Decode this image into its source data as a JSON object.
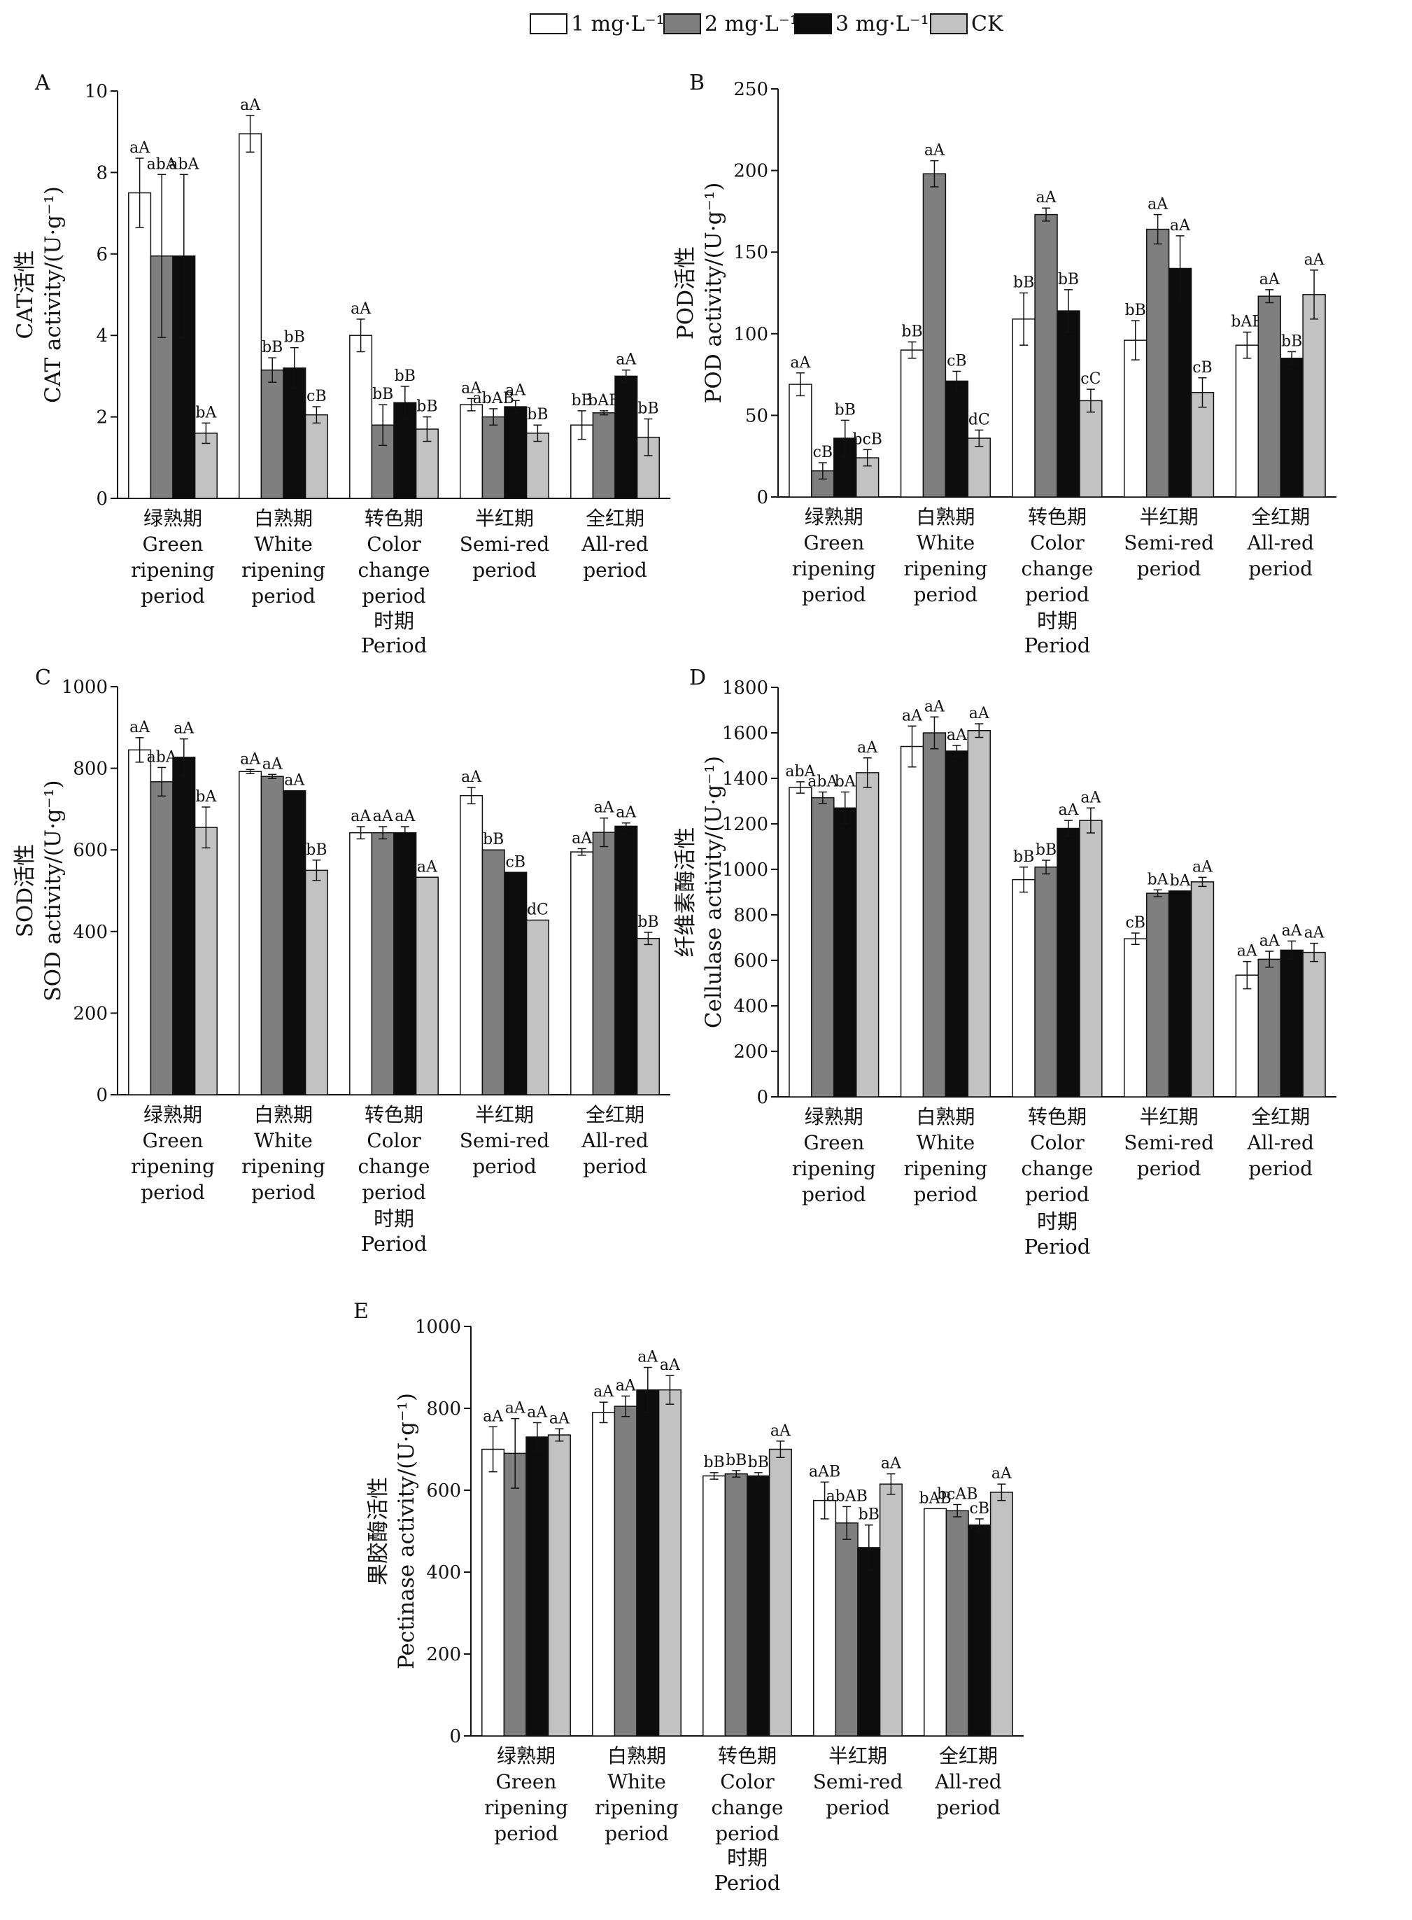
{
  "legend": {
    "items": [
      {
        "label": "1 mg·L⁻¹",
        "color": "#ffffff"
      },
      {
        "label": "2 mg·L⁻¹",
        "color": "#7f7f7f"
      },
      {
        "label": "3 mg·L⁻¹",
        "color": "#0d0d0d"
      },
      {
        "label": "CK",
        "color": "#c2c2c2"
      }
    ]
  },
  "category_labels": [
    [
      "绿熟期",
      "Green",
      "ripening",
      "period"
    ],
    [
      "白熟期",
      "White",
      "ripening",
      "period"
    ],
    [
      "转色期",
      "Color",
      "change",
      "period"
    ],
    [
      "半红期",
      "Semi-red",
      "period"
    ],
    [
      "全红期",
      "All-red",
      "period"
    ]
  ],
  "x_title": [
    "时期",
    "Period"
  ],
  "chart_data": [
    {
      "panel": "A",
      "type": "bar",
      "ylabel": [
        "CAT活性",
        "CAT activity/(U·g⁻¹)"
      ],
      "ylim": [
        0,
        10
      ],
      "yticks": [
        0,
        2,
        4,
        6,
        8,
        10
      ],
      "categories": [
        "绿熟期 Green ripening period",
        "白熟期 White ripening period",
        "转色期 Color change period",
        "半红期 Semi-red period",
        "全红期 All-red period"
      ],
      "series": [
        {
          "name": "1 mg·L⁻¹",
          "values": [
            7.5,
            8.95,
            4.0,
            2.3,
            1.8
          ],
          "errors": [
            0.85,
            0.45,
            0.4,
            0.15,
            0.35
          ],
          "labels": [
            "aA",
            "aA",
            "aA",
            "aA",
            "bB"
          ]
        },
        {
          "name": "2 mg·L⁻¹",
          "values": [
            5.95,
            3.15,
            1.8,
            2.0,
            2.1
          ],
          "errors": [
            2.0,
            0.3,
            0.5,
            0.2,
            0.05
          ],
          "labels": [
            "abA",
            "bB",
            "bB",
            "abAB",
            "bAB"
          ]
        },
        {
          "name": "3 mg·L⁻¹",
          "values": [
            5.95,
            3.2,
            2.35,
            2.25,
            3.0
          ],
          "errors": [
            2.0,
            0.5,
            0.4,
            0.15,
            0.15
          ],
          "labels": [
            "abA",
            "bB",
            "bB",
            "aA",
            "aA"
          ]
        },
        {
          "name": "CK",
          "values": [
            1.6,
            2.05,
            1.7,
            1.6,
            1.5
          ],
          "errors": [
            0.25,
            0.2,
            0.3,
            0.2,
            0.45
          ],
          "labels": [
            "bA",
            "cB",
            "bB",
            "bB",
            "bB"
          ]
        }
      ]
    },
    {
      "panel": "B",
      "type": "bar",
      "ylabel": [
        "POD活性",
        "POD activity/(U·g⁻¹)"
      ],
      "ylim": [
        0,
        250
      ],
      "yticks": [
        0,
        50,
        100,
        150,
        200,
        250
      ],
      "categories": [
        "绿熟期 Green ripening period",
        "白熟期 White ripening period",
        "转色期 Color change period",
        "半红期 Semi-red period",
        "全红期 All-red period"
      ],
      "series": [
        {
          "name": "1 mg·L⁻¹",
          "values": [
            69,
            90,
            109,
            96,
            93
          ],
          "errors": [
            7,
            5,
            16,
            12,
            8
          ],
          "labels": [
            "aA",
            "bB",
            "bB",
            "bB",
            "bAB"
          ]
        },
        {
          "name": "2 mg·L⁻¹",
          "values": [
            16,
            198,
            173,
            164,
            123
          ],
          "errors": [
            5,
            8,
            4,
            9,
            4
          ],
          "labels": [
            "cB",
            "aA",
            "aA",
            "aA",
            "aA"
          ]
        },
        {
          "name": "3 mg·L⁻¹",
          "values": [
            36,
            71,
            114,
            140,
            85
          ],
          "errors": [
            11,
            6,
            13,
            20,
            4
          ],
          "labels": [
            "bB",
            "cB",
            "bB",
            "aA",
            "bB"
          ]
        },
        {
          "name": "CK",
          "values": [
            24,
            36,
            59,
            64,
            124
          ],
          "errors": [
            5,
            5,
            7,
            9,
            15
          ],
          "labels": [
            "bcB",
            "dC",
            "cC",
            "cB",
            "aA"
          ]
        }
      ]
    },
    {
      "panel": "C",
      "type": "bar",
      "ylabel": [
        "SOD活性",
        "SOD activity/(U·g⁻¹)"
      ],
      "ylim": [
        0,
        1000
      ],
      "yticks": [
        0,
        200,
        400,
        600,
        800,
        1000
      ],
      "categories": [
        "绿熟期 Green ripening period",
        "白熟期 White ripening period",
        "转色期 Color change period",
        "半红期 Semi-red period",
        "全红期 All-red period"
      ],
      "series": [
        {
          "name": "1 mg·L⁻¹",
          "values": [
            845,
            792,
            642,
            733,
            595
          ],
          "errors": [
            30,
            5,
            15,
            20,
            8
          ],
          "labels": [
            "aA",
            "aA",
            "aA",
            "aA",
            "aA"
          ]
        },
        {
          "name": "2 mg·L⁻¹",
          "values": [
            767,
            780,
            642,
            600,
            643
          ],
          "errors": [
            35,
            5,
            15,
            0,
            35
          ],
          "labels": [
            "abA",
            "aA",
            "aA",
            "bB",
            "aA"
          ]
        },
        {
          "name": "3 mg·L⁻¹",
          "values": [
            827,
            745,
            642,
            545,
            658
          ],
          "errors": [
            45,
            0,
            15,
            0,
            8
          ],
          "labels": [
            "aA",
            "aA",
            "aA",
            "cB",
            "aA"
          ]
        },
        {
          "name": "CK",
          "values": [
            655,
            550,
            533,
            428,
            383
          ],
          "errors": [
            50,
            25,
            0,
            0,
            15
          ],
          "labels": [
            "bA",
            "bB",
            "aA",
            "dC",
            "bB"
          ]
        }
      ]
    },
    {
      "panel": "D",
      "type": "bar",
      "ylabel": [
        "纤维素酶活性",
        "Cellulase activity/(U·g⁻¹)"
      ],
      "ylim": [
        0,
        1800
      ],
      "yticks": [
        0,
        200,
        400,
        600,
        800,
        1000,
        1200,
        1400,
        1600,
        1800
      ],
      "categories": [
        "绿熟期 Green ripening period",
        "白熟期 White ripening period",
        "转色期 Color change period",
        "半红期 Semi-red period",
        "全红期 All-red period"
      ],
      "series": [
        {
          "name": "1 mg·L⁻¹",
          "values": [
            1360,
            1540,
            955,
            695,
            535
          ],
          "errors": [
            25,
            90,
            55,
            25,
            60
          ],
          "labels": [
            "abA",
            "aA",
            "bB",
            "cB",
            "aA"
          ]
        },
        {
          "name": "2 mg·L⁻¹",
          "values": [
            1315,
            1600,
            1010,
            895,
            605
          ],
          "errors": [
            25,
            70,
            30,
            15,
            35
          ],
          "labels": [
            "abA",
            "aA",
            "bB",
            "bA",
            "aA"
          ]
        },
        {
          "name": "3 mg·L⁻¹",
          "values": [
            1270,
            1520,
            1180,
            905,
            645
          ],
          "errors": [
            70,
            25,
            35,
            0,
            40
          ],
          "labels": [
            "bA",
            "aA",
            "aA",
            "bA",
            "aA"
          ]
        },
        {
          "name": "CK",
          "values": [
            1425,
            1610,
            1215,
            945,
            635
          ],
          "errors": [
            65,
            30,
            55,
            20,
            40
          ],
          "labels": [
            "aA",
            "aA",
            "aA",
            "aA",
            "aA"
          ]
        }
      ]
    },
    {
      "panel": "E",
      "type": "bar",
      "ylabel": [
        "果胶酶活性",
        "Pectinase activity/(U·g⁻¹)"
      ],
      "ylim": [
        0,
        1000
      ],
      "yticks": [
        0,
        200,
        400,
        600,
        800,
        1000
      ],
      "categories": [
        "绿熟期 Green ripening period",
        "白熟期 White ripening period",
        "转色期 Color change period",
        "半红期 Semi-red period",
        "全红期 All-red period"
      ],
      "series": [
        {
          "name": "1 mg·L⁻¹",
          "values": [
            700,
            790,
            635,
            575,
            555
          ],
          "errors": [
            55,
            25,
            8,
            45,
            0
          ],
          "labels": [
            "aA",
            "aA",
            "bB",
            "aAB",
            "bAB"
          ]
        },
        {
          "name": "2 mg·L⁻¹",
          "values": [
            690,
            805,
            640,
            520,
            550
          ],
          "errors": [
            85,
            25,
            8,
            40,
            15
          ],
          "labels": [
            "aA",
            "aA",
            "bB",
            "abAB",
            "bcAB"
          ]
        },
        {
          "name": "3 mg·L⁻¹",
          "values": [
            730,
            845,
            635,
            460,
            515
          ],
          "errors": [
            35,
            55,
            8,
            55,
            15
          ],
          "labels": [
            "aA",
            "aA",
            "bB",
            "bB",
            "cB"
          ]
        },
        {
          "name": "CK",
          "values": [
            735,
            845,
            700,
            615,
            595
          ],
          "errors": [
            15,
            35,
            20,
            25,
            20
          ],
          "labels": [
            "aA",
            "aA",
            "aA",
            "aA",
            "aA"
          ]
        }
      ]
    }
  ]
}
